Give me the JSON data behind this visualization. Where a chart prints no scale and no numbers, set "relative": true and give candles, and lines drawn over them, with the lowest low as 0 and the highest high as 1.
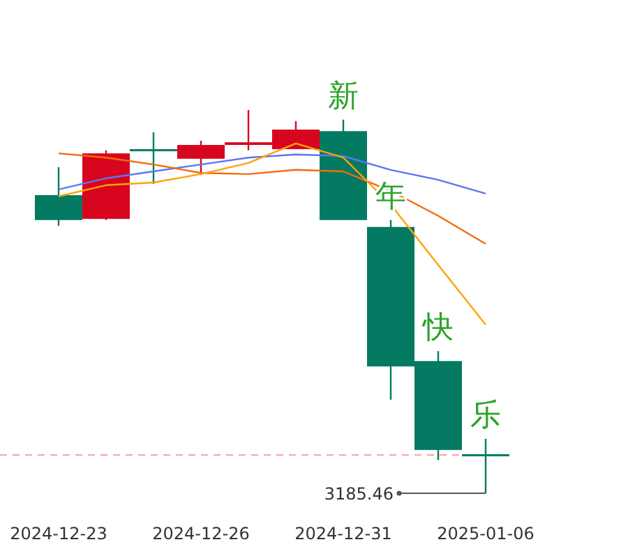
{
  "chart_data": {
    "type": "candlestick",
    "relative": true,
    "categories": [
      "2024-12-23",
      null,
      null,
      "2024-12-26",
      null,
      null,
      "2024-12-31",
      null,
      null,
      "2025-01-06"
    ],
    "ohlc": [
      [
        0.778,
        0.851,
        0.698,
        0.713
      ],
      [
        0.716,
        0.895,
        0.713,
        0.887
      ],
      [
        0.898,
        0.942,
        0.807,
        0.895
      ],
      [
        0.873,
        0.92,
        0.836,
        0.909
      ],
      [
        0.909,
        1,
        0.895,
        0.916
      ],
      [
        0.898,
        0.971,
        0.898,
        0.949
      ],
      [
        0.945,
        0.975,
        0.713,
        0.713
      ],
      [
        0.695,
        0.713,
        0.244,
        0.331
      ],
      [
        0.345,
        0.371,
        0.087,
        0.113
      ],
      [
        0.102,
        0.142,
        0,
        0.098
      ]
    ],
    "colors": [
      "#047a63",
      "#d7061e",
      "#047a63",
      "#d7061e",
      "#d7061e",
      "#d7061e",
      "#047a63",
      "#047a63",
      "#047a63",
      "#047a63"
    ],
    "series": [
      {
        "type": "line",
        "color": "#5a78f0",
        "values": [
          0.793,
          0.822,
          0.84,
          0.858,
          0.876,
          0.884,
          0.88,
          0.844,
          0.818,
          0.782
        ]
      },
      {
        "type": "line",
        "color": "#f26b10",
        "values": [
          0.887,
          0.876,
          0.858,
          0.836,
          0.833,
          0.844,
          0.84,
          0.789,
          0.724,
          0.651
        ]
      },
      {
        "type": "line",
        "color": "#ffa20a",
        "values": [
          0.775,
          0.804,
          0.811,
          0.833,
          0.862,
          0.913,
          0.876,
          0.753,
          0.596,
          0.44
        ]
      }
    ],
    "ref_lines": [
      {
        "axis": "y",
        "value": 0.1,
        "color": "#f4a3ab",
        "line_style": "dashed"
      }
    ],
    "annotations": [
      {
        "text": "新",
        "y": 0.975
      },
      {
        "text": "年",
        "y": 0.713
      },
      {
        "text": "快",
        "y": 0.371
      },
      {
        "text": "乐",
        "y": 0.142
      },
      {
        "text": "3185.46",
        "x": "2025-01-06",
        "y": 0
      }
    ]
  }
}
